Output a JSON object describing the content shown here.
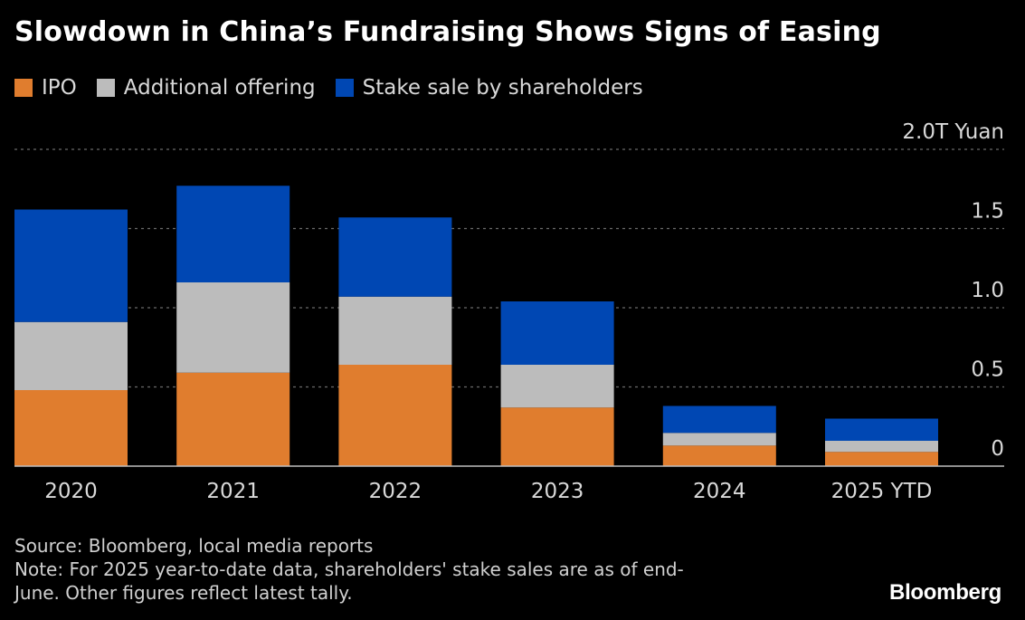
{
  "chart_data": {
    "type": "bar",
    "stacked": true,
    "title": "Slowdown in China’s Fundraising Shows Signs of Easing",
    "unit_label": "2.0T Yuan",
    "categories": [
      "2020",
      "2021",
      "2022",
      "2023",
      "2024",
      "2025 YTD"
    ],
    "series": [
      {
        "name": "IPO",
        "color": "#e07d2e",
        "values": [
          0.48,
          0.59,
          0.64,
          0.37,
          0.13,
          0.09
        ]
      },
      {
        "name": "Additional offering",
        "color": "#bcbcbc",
        "values": [
          0.43,
          0.57,
          0.43,
          0.27,
          0.08,
          0.07
        ]
      },
      {
        "name": "Stake sale by shareholders",
        "color": "#0047b3",
        "values": [
          0.71,
          0.61,
          0.5,
          0.4,
          0.17,
          0.14
        ]
      }
    ],
    "yticks": [
      {
        "value": 0,
        "label": "0"
      },
      {
        "value": 0.5,
        "label": "0.5"
      },
      {
        "value": 1.0,
        "label": "1.0"
      },
      {
        "value": 1.5,
        "label": "1.5"
      },
      {
        "value": 2.0,
        "label": "2.0T Yuan"
      }
    ],
    "ylim": [
      0,
      2.0
    ],
    "grid": true,
    "legend_position": "top-left"
  },
  "footer": {
    "source": "Source: Bloomberg, local media reports",
    "note_line1": "Note: For 2025 year-to-date data, shareholders' stake sales are as of end-",
    "note_line2": "June. Other figures reflect latest tally."
  },
  "brand": "Bloomberg"
}
